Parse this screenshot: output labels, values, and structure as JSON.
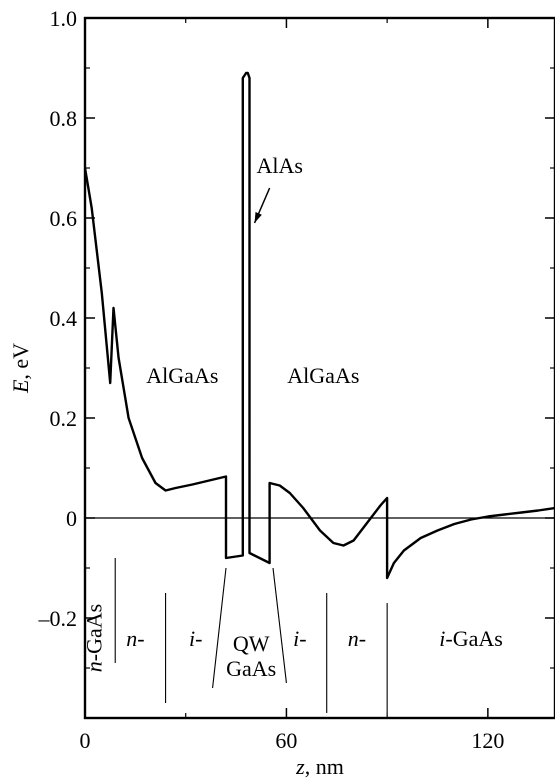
{
  "chart_data": {
    "type": "line",
    "xlabel_var": "z",
    "xlabel_unit": ", nm",
    "ylabel_var": "E",
    "ylabel_unit": ", eV",
    "xlim": [
      0,
      140
    ],
    "ylim": [
      -0.4,
      1.0
    ],
    "x_ticks": [
      0,
      60,
      120
    ],
    "x_tick_labels": [
      "0",
      "60",
      "120"
    ],
    "x_minor_ticks": [
      30,
      90
    ],
    "y_ticks": [
      1.0,
      0.8,
      0.6,
      0.4,
      0.2,
      0,
      -0.2
    ],
    "y_tick_labels": [
      "1.0",
      "0.8",
      "0.6",
      "0.4",
      "0.2",
      "0",
      "–0.2"
    ],
    "y_minor_ticks": [
      0.9,
      0.7,
      0.5,
      0.3,
      0.1,
      -0.1,
      -0.3
    ],
    "zero_line": 0,
    "series": [
      {
        "x": [
          0,
          2,
          5,
          7.5,
          8.5,
          10,
          13,
          17,
          21,
          24,
          27,
          32,
          37,
          42,
          42,
          47,
          47,
          48,
          48.5,
          49,
          49,
          55,
          55,
          58,
          61,
          65,
          70,
          74,
          77,
          80,
          84,
          88,
          90,
          90,
          92,
          95,
          100,
          105,
          110,
          115,
          120,
          125,
          130,
          135,
          140
        ],
        "y": [
          0.7,
          0.62,
          0.45,
          0.27,
          0.42,
          0.32,
          0.2,
          0.12,
          0.07,
          0.055,
          0.06,
          0.067,
          0.075,
          0.083,
          -0.08,
          -0.075,
          0.88,
          0.89,
          0.89,
          0.88,
          -0.07,
          -0.09,
          0.07,
          0.065,
          0.05,
          0.02,
          -0.025,
          -0.05,
          -0.055,
          -0.045,
          -0.01,
          0.025,
          0.04,
          -0.12,
          -0.09,
          -0.065,
          -0.04,
          -0.025,
          -0.012,
          -0.003,
          0.003,
          0.007,
          0.011,
          0.015,
          0.02
        ]
      }
    ],
    "region_labels": [
      {
        "prefix": "n",
        "suffix": "-GaAs",
        "x": 2.5,
        "y": -0.24,
        "vertical": true
      },
      {
        "prefix": "n",
        "suffix": "-",
        "x": 15,
        "y": -0.24
      },
      {
        "prefix": "i",
        "suffix": "-",
        "x": 33,
        "y": -0.24
      },
      {
        "prefix": "",
        "suffix": "QW",
        "x": 49.5,
        "y": -0.25
      },
      {
        "prefix": "",
        "suffix": "GaAs",
        "x": 49.5,
        "y": -0.3
      },
      {
        "prefix": "i",
        "suffix": "-",
        "x": 64,
        "y": -0.24
      },
      {
        "prefix": "n",
        "suffix": "-",
        "x": 81,
        "y": -0.24
      },
      {
        "prefix": "i",
        "suffix": "-GaAs",
        "x": 115,
        "y": -0.24
      }
    ],
    "boundaries": [
      {
        "x1": 9,
        "y1": -0.08,
        "x2": 9,
        "y2": -0.29
      },
      {
        "x1": 24,
        "y1": -0.15,
        "x2": 24,
        "y2": -0.37
      },
      {
        "x1": 42,
        "y1": -0.1,
        "x2": 38,
        "y2": -0.34
      },
      {
        "x1": 56,
        "y1": -0.1,
        "x2": 60,
        "y2": -0.33
      },
      {
        "x1": 72,
        "y1": -0.15,
        "x2": 72,
        "y2": -0.39
      },
      {
        "x1": 90,
        "y1": -0.17,
        "x2": 90,
        "y2": -0.39
      }
    ],
    "annotations": [
      {
        "text": "AlGaAs",
        "x": 29,
        "y": 0.27
      },
      {
        "text": "AlGaAs",
        "x": 71,
        "y": 0.27
      },
      {
        "text": "AlAs",
        "x": 58,
        "y": 0.69
      }
    ],
    "arrow": {
      "from": [
        55,
        0.66
      ],
      "to": [
        50.5,
        0.59
      ]
    }
  }
}
